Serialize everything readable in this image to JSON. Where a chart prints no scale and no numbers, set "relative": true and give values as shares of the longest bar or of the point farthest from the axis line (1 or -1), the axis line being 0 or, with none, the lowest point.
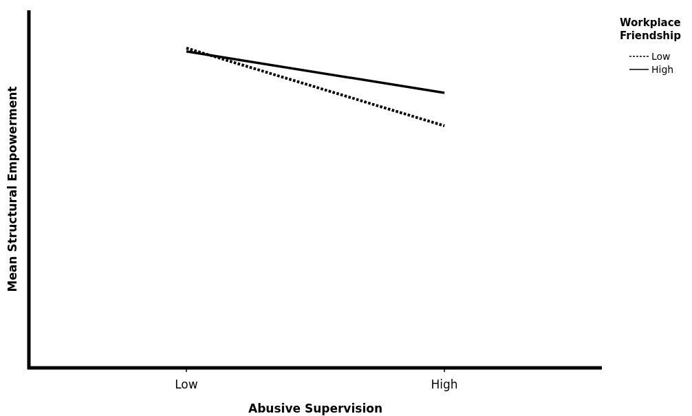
{
  "chart_data": {
    "type": "line",
    "relative": true,
    "xlabel": "Abusive Supervision",
    "ylabel": "Mean Structural Empowerment",
    "legend_title": "Workplace Friendship",
    "legend": "top right",
    "categories": [
      "Low",
      "High"
    ],
    "series": [
      {
        "name": "Low",
        "color": "#000000",
        "line_style": "dotted",
        "values": [
          1,
          0.757
        ]
      },
      {
        "name": "High",
        "color": "#000000",
        "line_style": "solid",
        "values": [
          0.99,
          0.86
        ]
      }
    ]
  }
}
